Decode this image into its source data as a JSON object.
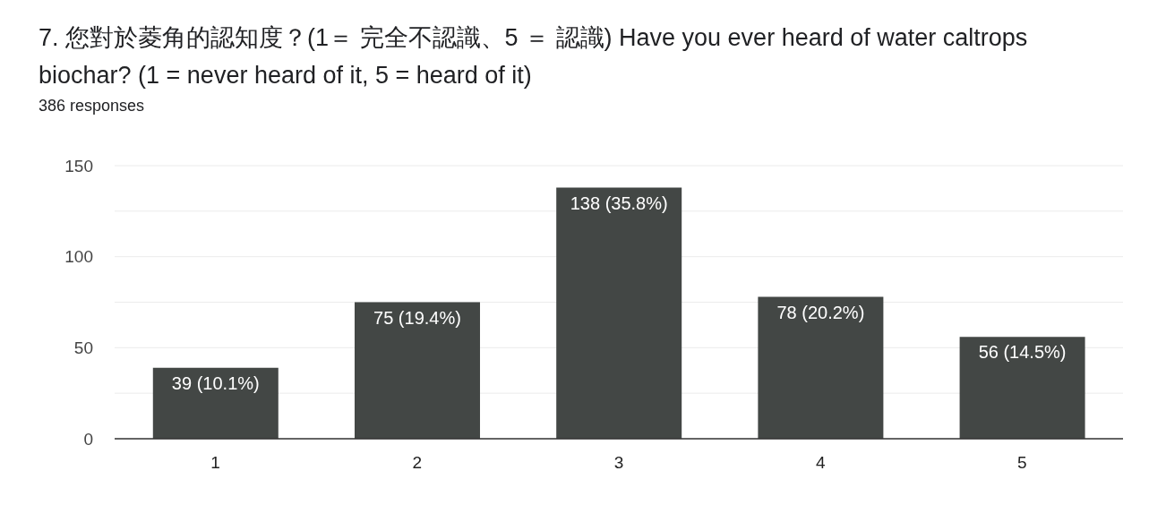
{
  "chart_data": {
    "type": "bar",
    "title": "7. 您對於菱角的認知度？(1＝ 完全不認識、5 ＝ 認識)  Have you ever heard of water caltrops biochar? (1 = never heard of it, 5 = heard of it)",
    "subtitle": "386 responses",
    "categories": [
      "1",
      "2",
      "3",
      "4",
      "5"
    ],
    "values": [
      39,
      75,
      138,
      78,
      56
    ],
    "value_labels": [
      "39 (10.1%)",
      "75 (19.4%)",
      "138 (35.8%)",
      "78 (20.2%)",
      "56 (14.5%)"
    ],
    "color": "#434745",
    "ylim": [
      0,
      150
    ],
    "yticks": [
      0,
      {
        "value": 25,
        "label": null
      },
      50,
      {
        "value": 75,
        "label": null
      },
      100,
      {
        "value": 125,
        "label": null
      },
      150
    ],
    "grid": "y"
  }
}
